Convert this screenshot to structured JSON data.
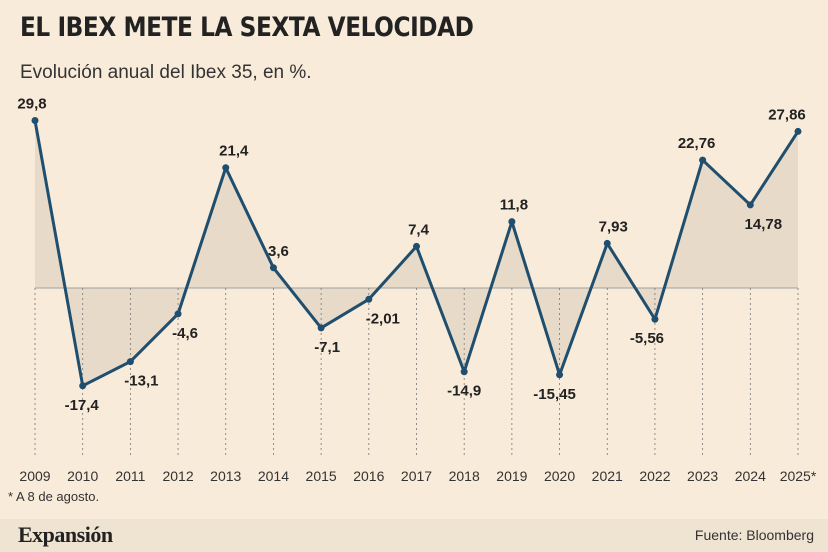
{
  "header": {
    "title": "EL IBEX METE LA SEXTA VELOCIDAD",
    "subtitle": "Evolución anual del Ibex 35, en %."
  },
  "footnote": "* A 8 de agosto.",
  "footer": {
    "brand": "Expansión",
    "source": "Fuente: Bloomberg"
  },
  "colors": {
    "line": "#1f4e6e",
    "area": "#e8dac8",
    "background": "#f8ebd9",
    "zero_line": "#a0a0a0"
  },
  "chart_data": {
    "type": "line",
    "title": "EL IBEX METE LA SEXTA VELOCIDAD",
    "subtitle": "Evolución anual del Ibex 35, en %.",
    "xlabel": "",
    "ylabel": "",
    "categories": [
      "2009",
      "2010",
      "2011",
      "2012",
      "2013",
      "2014",
      "2015",
      "2016",
      "2017",
      "2018",
      "2019",
      "2020",
      "2021",
      "2022",
      "2023",
      "2024",
      "2025*"
    ],
    "series": [
      {
        "values": [
          29.8,
          -17.4,
          -13.1,
          -4.6,
          21.4,
          3.6,
          -7.1,
          -2.01,
          7.4,
          -14.9,
          11.8,
          -15.45,
          7.93,
          -5.56,
          22.76,
          14.78,
          27.86
        ],
        "labels": [
          "29,8",
          "-17,4",
          "-13,1",
          "-4,6",
          "21,4",
          "3,6",
          "-7,1",
          "-2,01",
          "7,4",
          "-14,9",
          "11,8",
          "-15,45",
          "7,93",
          "-5,56",
          "22,76",
          "14,78",
          "27,86"
        ]
      }
    ],
    "ylim": [
      -30,
      30
    ],
    "grid": false,
    "fill": "area-to-zero",
    "legend": "none"
  }
}
